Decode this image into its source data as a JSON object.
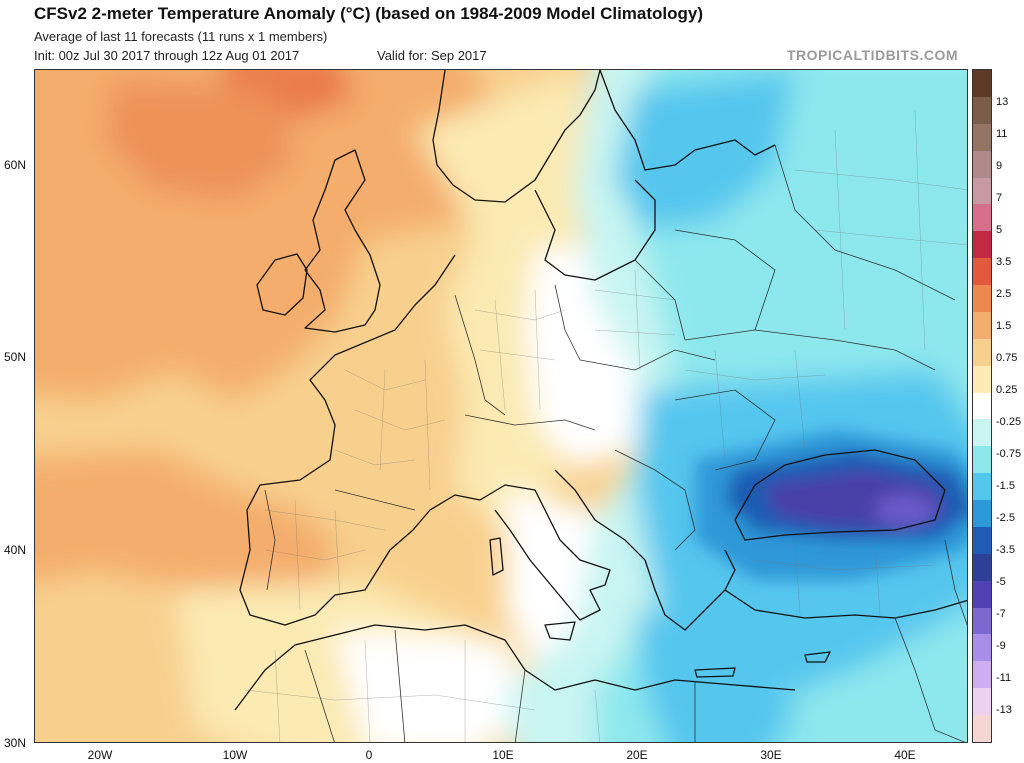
{
  "header": {
    "title": "CFSv2 2-meter Temperature Anomaly (°C) (based on 1984-2009 Model Climatology)",
    "subtitle": "Average of last 11 forecasts (11 runs x 1 members)",
    "init": "Init: 00z Jul 30 2017 through 12z Aug 01 2017",
    "valid": "Valid for: Sep 2017",
    "watermark": "TROPICALTIDBITS.COM"
  },
  "axes": {
    "lat_labels": [
      "60N",
      "50N",
      "40N",
      "30N"
    ],
    "lon_labels": [
      "20W",
      "10W",
      "0",
      "10E",
      "20E",
      "30E",
      "40E"
    ]
  },
  "colorbar": {
    "labels": [
      "13",
      "11",
      "9",
      "7",
      "5",
      "3.5",
      "2.5",
      "1.5",
      "0.75",
      "0.25",
      "-0.25",
      "-0.75",
      "-1.5",
      "-2.5",
      "-3.5",
      "-5",
      "-7",
      "-9",
      "-11",
      "-13"
    ],
    "colors": [
      "#5c3a26",
      "#7b5d4a",
      "#957463",
      "#b0898a",
      "#c69a9f",
      "#d66f87",
      "#c02b43",
      "#e15a3c",
      "#ec8a4e",
      "#f4ad6c",
      "#f8d08e",
      "#fbeab2",
      "#ffffff",
      "#c8f5f2",
      "#8de8ee",
      "#54c6ee",
      "#2f98d8",
      "#1f5cb3",
      "#2e3f9a",
      "#5042b4",
      "#7b69d1",
      "#a98dea",
      "#cfadee",
      "#eed0ef",
      "#f6d6d2"
    ]
  },
  "colors": {
    "warm_strong": "#ea7b48",
    "warm_mid": "#f4ad6c",
    "warm_light": "#f8d08e",
    "warm_pale": "#fbeab2",
    "neutral": "#ffffff",
    "cool_pale": "#c8f5f2",
    "cool_light": "#8de8ee",
    "cool_mid": "#54c6ee",
    "cool_strong": "#2f98d8",
    "cold": "#1f5cb3",
    "coldest": "#4a3fa8"
  }
}
